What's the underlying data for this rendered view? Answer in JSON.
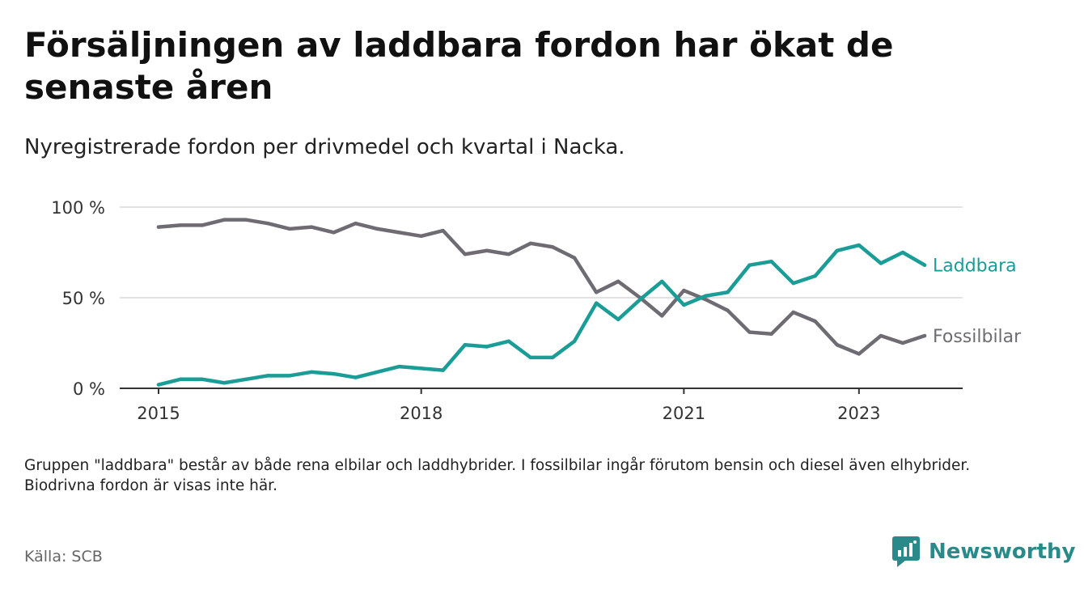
{
  "title": "Försäljningen av laddbara fordon har ökat de senaste åren",
  "subtitle": "Nyregistrerade fordon per drivmedel och kvartal i Nacka.",
  "note": "Gruppen \"laddbara\" består av både rena elbilar och laddhybrider. I fossilbilar ingår förutom bensin och diesel även elhybrider. Biodrivna fordon är visas inte här.",
  "source": "Källa: SCB",
  "brand": {
    "name": "Newsworthy",
    "icon": "newsworthy-logo-icon",
    "color": "#2a8a8a"
  },
  "chart_data": {
    "type": "line",
    "title": "Nyregistrerade fordon per drivmedel och kvartal i Nacka",
    "xlabel": "",
    "ylabel": "",
    "ylim": [
      0,
      100
    ],
    "y_ticks": [
      0,
      50,
      100
    ],
    "y_tick_labels": [
      "0 %",
      "50 %",
      "100 %"
    ],
    "x_range": [
      2015.0,
      2023.75
    ],
    "x_ticks": [
      2015,
      2018,
      2021,
      2023
    ],
    "x_tick_labels": [
      "2015",
      "2018",
      "2021",
      "2023"
    ],
    "x": [
      2015.0,
      2015.25,
      2015.5,
      2015.75,
      2016.0,
      2016.25,
      2016.5,
      2016.75,
      2017.0,
      2017.25,
      2017.5,
      2017.75,
      2018.0,
      2018.25,
      2018.5,
      2018.75,
      2019.0,
      2019.25,
      2019.5,
      2019.75,
      2020.0,
      2020.25,
      2020.5,
      2020.75,
      2021.0,
      2021.25,
      2021.5,
      2021.75,
      2022.0,
      2022.25,
      2022.5,
      2022.75,
      2023.0,
      2023.25,
      2023.5,
      2023.75
    ],
    "series": [
      {
        "name": "Fossilbilar",
        "color": "#6e6c72",
        "values": [
          89,
          90,
          90,
          93,
          93,
          91,
          88,
          89,
          86,
          91,
          88,
          86,
          84,
          87,
          74,
          76,
          74,
          80,
          78,
          72,
          53,
          59,
          50,
          40,
          54,
          49,
          43,
          31,
          30,
          42,
          37,
          24,
          19,
          29,
          25,
          29
        ]
      },
      {
        "name": "Laddbara",
        "color": "#1a9c97",
        "values": [
          2,
          5,
          5,
          3,
          5,
          7,
          7,
          9,
          8,
          6,
          9,
          12,
          11,
          10,
          24,
          23,
          26,
          17,
          17,
          26,
          47,
          38,
          49,
          59,
          46,
          51,
          53,
          68,
          70,
          58,
          62,
          76,
          79,
          69,
          75,
          68
        ]
      }
    ]
  }
}
